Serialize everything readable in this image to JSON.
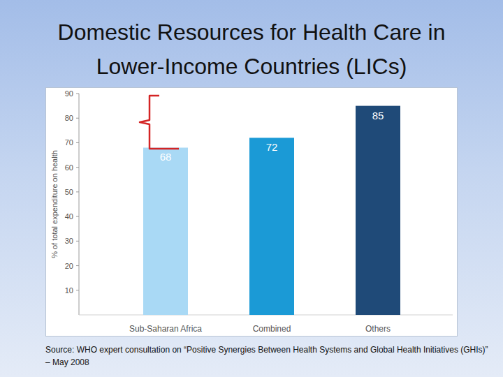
{
  "chart_data": {
    "type": "bar",
    "title": "Domestic Resources for Health Care in Lower-Income Countries (LICs)",
    "y_label": "% of total expenditure on health",
    "categories": [
      "Sub-Saharan Africa",
      "Combined",
      "Others"
    ],
    "values": [
      68,
      72,
      85
    ],
    "colors": [
      "#a9d9f5",
      "#1b9ad6",
      "#1f4a78"
    ],
    "ylim": [
      0,
      90
    ],
    "yticks": [
      10,
      20,
      30,
      40,
      50,
      60,
      70,
      80,
      90
    ],
    "grid": false,
    "data_labels": true,
    "annotations": [
      "Source: WHO expert consultation on “Positive Synergies Between Health Systems and Global Health Initiatives (GHIs)” – May 2008"
    ]
  }
}
